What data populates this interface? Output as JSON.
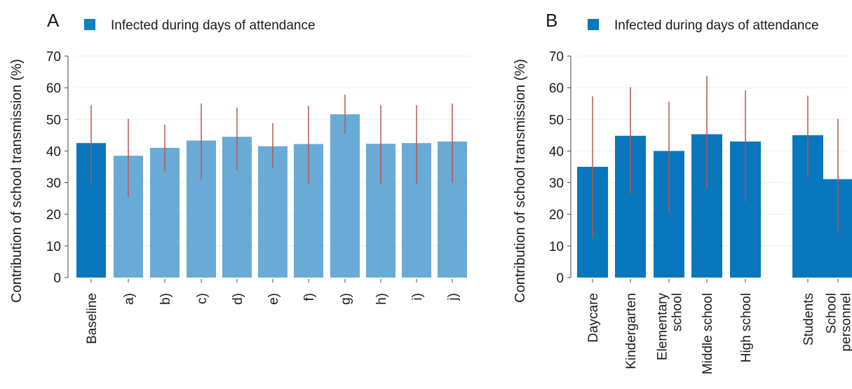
{
  "chart_data": [
    {
      "panel_label": "A",
      "type": "bar",
      "categories": [
        "Baseline",
        "a)",
        "b)",
        "c)",
        "d)",
        "e)",
        "f)",
        "g)",
        "h)",
        "i)",
        "j)"
      ],
      "series": [
        {
          "name": "Infected during days of attendance",
          "values": [
            42.5,
            38.5,
            41,
            43.3,
            44.5,
            41.5,
            42.2,
            51.6,
            42.3,
            42.5,
            43
          ],
          "error_low": [
            29.5,
            25.5,
            33.5,
            31,
            34,
            34.5,
            29.5,
            45.5,
            29.5,
            29.5,
            30
          ],
          "error_high": [
            54.5,
            50.2,
            48.3,
            55,
            53.7,
            48.8,
            54.3,
            57.8,
            54.5,
            54.5,
            55
          ]
        }
      ],
      "highlight_index": 0,
      "ylabel": "Contribution of school transmission (%)",
      "xlabel": "",
      "ylim": [
        0,
        70
      ],
      "yticks": [
        0,
        10,
        20,
        30,
        40,
        50,
        60,
        70
      ],
      "grid": true,
      "legend_position": "top-left",
      "colors": {
        "bar": "#6aaad6",
        "highlight": "#0877bd",
        "error": "#b5574f"
      }
    },
    {
      "panel_label": "B",
      "type": "bar",
      "categories": [
        "Daycare",
        "Kindergarten",
        "Elementary school",
        "Middle school",
        "High school",
        "Students",
        "School personnel"
      ],
      "tick_lines": [
        [
          "Daycare"
        ],
        [
          "Kindergarten"
        ],
        [
          "Elementary",
          "school"
        ],
        [
          "Middle school"
        ],
        [
          "High school"
        ],
        [
          "Students"
        ],
        [
          "School",
          "personnel"
        ]
      ],
      "series": [
        {
          "name": "Infected during days of attendance",
          "values": [
            35,
            44.8,
            40,
            45.3,
            43,
            45,
            31.1
          ],
          "error_low": [
            12.5,
            26.5,
            20.5,
            28,
            24,
            31.5,
            14
          ],
          "error_high": [
            57.3,
            60.2,
            55.6,
            63.8,
            59.2,
            57.5,
            50.2
          ]
        }
      ],
      "ylabel": "Contribution of school transmission (%)",
      "xlabel": "",
      "ylim": [
        0,
        70
      ],
      "yticks": [
        0,
        10,
        20,
        30,
        40,
        50,
        60,
        70
      ],
      "grid": true,
      "legend_position": "top-left",
      "colors": {
        "bar": "#0877bd",
        "error": "#b5574f"
      }
    }
  ]
}
